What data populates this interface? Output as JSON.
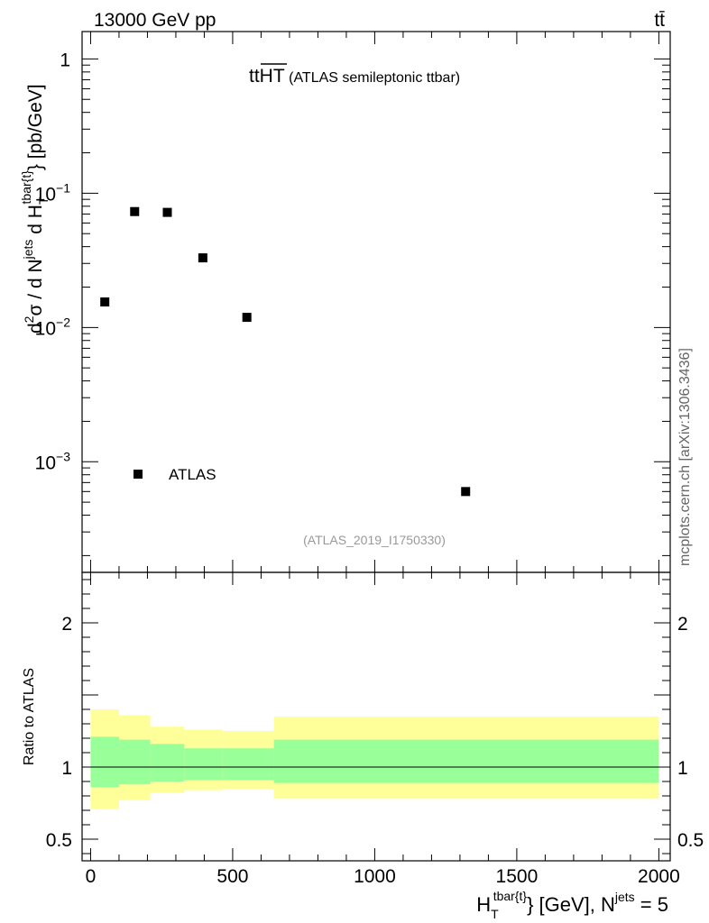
{
  "header": {
    "energy_label": "13000 GeV pp",
    "process_label": "tt̄"
  },
  "side_label": "mcplots.cern.ch [arXiv:1306.3436]",
  "chart_data": [
    {
      "type": "scatter",
      "panel": "main",
      "title_main": "tt",
      "title_over": "HT",
      "title_rest": " (ATLAS semileptonic ttbar)",
      "analysis_label": "(ATLAS_2019_I1750330)",
      "ylabel_parts": {
        "a": "d",
        "b": "2",
        "c": "σ / d N",
        "d": "jets",
        "e": " d H",
        "f": "T",
        "g": "tbar{t}",
        "h": "} [pb/GeV]"
      },
      "yscale": "log",
      "ylim": [
        0.00015,
        1.6
      ],
      "xlim": [
        -30,
        2040
      ],
      "yticks": [
        {
          "value": 1,
          "label_base": "1",
          "label_exp": ""
        },
        {
          "value": 0.1,
          "label_base": "10",
          "label_exp": "−1"
        },
        {
          "value": 0.01,
          "label_base": "10",
          "label_exp": "−2"
        },
        {
          "value": 0.001,
          "label_base": "10",
          "label_exp": "−3"
        }
      ],
      "series": [
        {
          "name": "ATLAS",
          "marker": "square",
          "points": [
            {
              "x": 50,
              "y": 0.0155
            },
            {
              "x": 155,
              "y": 0.073
            },
            {
              "x": 270,
              "y": 0.072
            },
            {
              "x": 395,
              "y": 0.033
            },
            {
              "x": 550,
              "y": 0.0119
            },
            {
              "x": 1320,
              "y": 0.0006
            }
          ]
        }
      ],
      "legend": {
        "position": "bottom-left",
        "label": "ATLAS"
      }
    },
    {
      "type": "area",
      "panel": "ratio",
      "ylabel": "Ratio to ATLAS",
      "xlabel_parts": {
        "a": "H",
        "b": "T",
        "c": "tbar{t}",
        "d": "} [GeV], N",
        "e": "jets",
        "f": " = 5"
      },
      "xlim": [
        -30,
        2040
      ],
      "ylim": [
        0.35,
        2.35
      ],
      "xticks": [
        {
          "value": 0,
          "label": "0"
        },
        {
          "value": 500,
          "label": "500"
        },
        {
          "value": 1000,
          "label": "1000"
        },
        {
          "value": 1500,
          "label": "1500"
        },
        {
          "value": 2000,
          "label": "2000"
        }
      ],
      "yticks": [
        {
          "value": 2,
          "label": "2"
        },
        {
          "value": 1,
          "label": "1"
        },
        {
          "value": 0.5,
          "label": "0.5"
        }
      ],
      "reference_line": 1,
      "bins": [
        {
          "lo": 0,
          "hi": 100,
          "inner_lo": 0.86,
          "inner_hi": 1.21,
          "outer_lo": 0.71,
          "outer_hi": 1.4
        },
        {
          "lo": 100,
          "hi": 210,
          "inner_lo": 0.88,
          "inner_hi": 1.19,
          "outer_lo": 0.77,
          "outer_hi": 1.36
        },
        {
          "lo": 210,
          "hi": 330,
          "inner_lo": 0.9,
          "inner_hi": 1.16,
          "outer_lo": 0.82,
          "outer_hi": 1.28
        },
        {
          "lo": 330,
          "hi": 465,
          "inner_lo": 0.91,
          "inner_hi": 1.13,
          "outer_lo": 0.84,
          "outer_hi": 1.26
        },
        {
          "lo": 465,
          "hi": 645,
          "inner_lo": 0.91,
          "inner_hi": 1.13,
          "outer_lo": 0.85,
          "outer_hi": 1.25
        },
        {
          "lo": 645,
          "hi": 2000,
          "inner_lo": 0.89,
          "inner_hi": 1.19,
          "outer_lo": 0.78,
          "outer_hi": 1.35
        }
      ],
      "colors": {
        "inner": "#99ff99",
        "outer": "#ffff99"
      }
    }
  ]
}
